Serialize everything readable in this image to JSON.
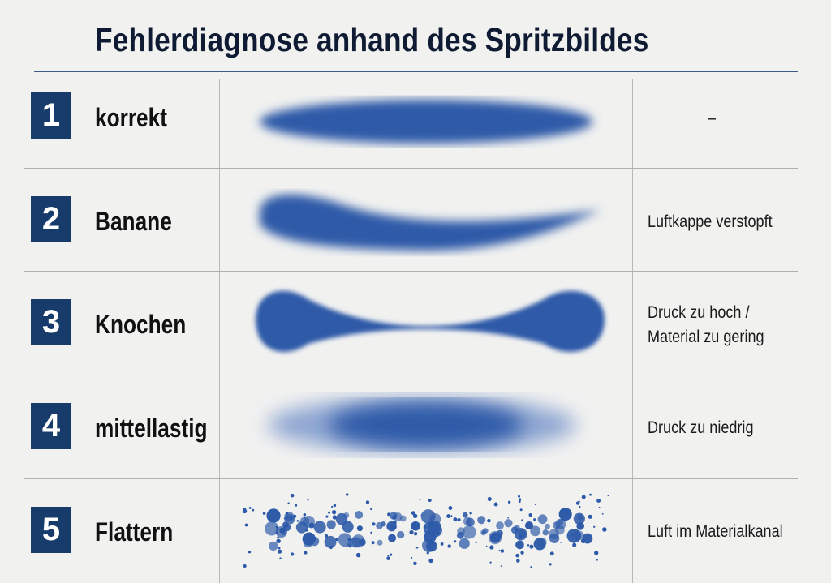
{
  "title": "Fehlerdiagnose anhand des Spritzbildes",
  "rows": [
    {
      "number": "1",
      "name": "korrekt",
      "cause_lines": [
        "–"
      ]
    },
    {
      "number": "2",
      "name": "Banane",
      "cause_lines": [
        "Luftkappe verstopft"
      ]
    },
    {
      "number": "3",
      "name": "Knochen",
      "cause_lines": [
        "Druck zu hoch /",
        "Material zu gering"
      ]
    },
    {
      "number": "4",
      "name": "mittellastig",
      "cause_lines": [
        "Druck zu niedrig"
      ]
    },
    {
      "number": "5",
      "name": "Flattern",
      "cause_lines": [
        "Luft im Materialkanal"
      ]
    }
  ],
  "colors": {
    "badge": "#173c6c",
    "spray": "#2d5aa8",
    "rule": "#3d5c8c"
  }
}
